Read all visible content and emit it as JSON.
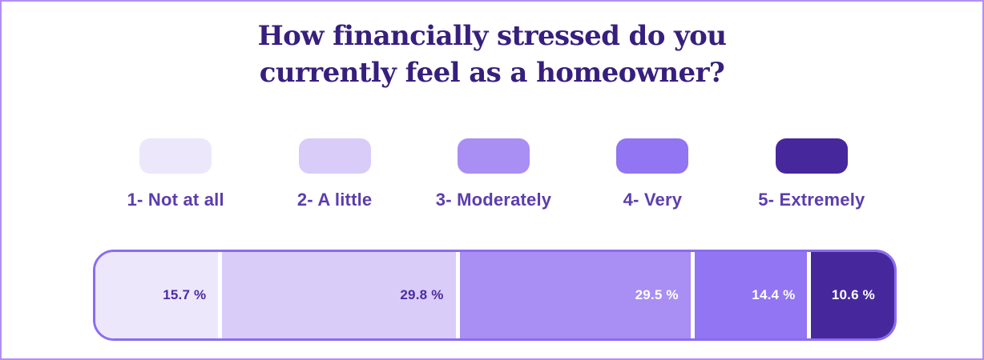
{
  "page": {
    "background": "#ffffff",
    "border_color": "#b18ff7"
  },
  "title": {
    "text": "How financially stressed do you currently feel as a homeowner?",
    "line1": "How financially stressed do you",
    "line2": "currently feel as a homeowner?",
    "color": "#371f7d"
  },
  "legend": {
    "position": "top",
    "label_color": "#5b3dae"
  },
  "segments": [
    {
      "legend_label": "1- Not at all",
      "value": 15.7,
      "value_label": "15.7 %",
      "color": "#ece7fb",
      "value_label_color": "#4c2ba3"
    },
    {
      "legend_label": "2- A little",
      "value": 29.8,
      "value_label": "29.8 %",
      "color": "#d9ccf8",
      "value_label_color": "#4c2ba3"
    },
    {
      "legend_label": "3- Moderately",
      "value": 29.5,
      "value_label": "29.5 %",
      "color": "#a98ef4",
      "value_label_color": "#ffffff"
    },
    {
      "legend_label": "4- Very",
      "value": 14.4,
      "value_label": "14.4 %",
      "color": "#9175f2",
      "value_label_color": "#ffffff"
    },
    {
      "legend_label": "5- Extremely",
      "value": 10.6,
      "value_label": "10.6 %",
      "color": "#46289c",
      "value_label_color": "#ffffff"
    }
  ],
  "bar": {
    "border_color": "#8b6cf0",
    "gap_color": "#ffffff"
  },
  "chart_data": {
    "type": "bar",
    "variant": "stacked-horizontal-single-bar",
    "title": "How financially stressed do you currently feel as a homeowner?",
    "categories": [
      "1- Not at all",
      "2- A little",
      "3- Moderately",
      "4- Very",
      "5- Extremely"
    ],
    "values": [
      15.7,
      29.8,
      29.5,
      14.4,
      10.6
    ],
    "unit": "%",
    "total": 100.0,
    "legend_position": "top",
    "grid": false,
    "colors": [
      "#ece7fb",
      "#d9ccf8",
      "#a98ef4",
      "#9175f2",
      "#46289c"
    ]
  }
}
